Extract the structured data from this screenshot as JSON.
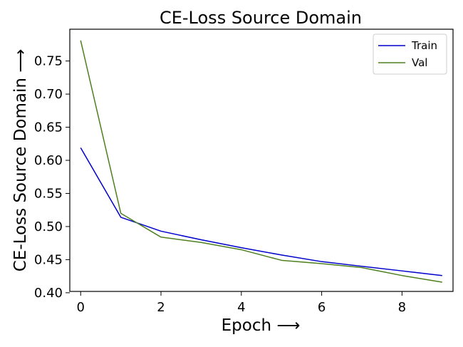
{
  "chart_data": {
    "type": "line",
    "title": "CE-Loss Source Domain",
    "xlabel": "Epoch ⟶",
    "ylabel": "CE-Loss Source Domain ⟶",
    "x": [
      0,
      1,
      2,
      3,
      4,
      5,
      6,
      7,
      8,
      9
    ],
    "xlim": [
      -0.27,
      9.27
    ],
    "ylim": [
      0.402,
      0.798
    ],
    "xticks": [
      0,
      2,
      4,
      6,
      8
    ],
    "xtick_labels": [
      "0",
      "2",
      "4",
      "6",
      "8"
    ],
    "yticks": [
      0.4,
      0.45,
      0.5,
      0.55,
      0.6,
      0.65,
      0.7,
      0.75
    ],
    "ytick_labels": [
      "0.40",
      "0.45",
      "0.50",
      "0.55",
      "0.60",
      "0.65",
      "0.70",
      "0.75"
    ],
    "grid": false,
    "legend_position": "top-right",
    "series": [
      {
        "name": "Train",
        "color": "#0000cc",
        "values": [
          0.619,
          0.514,
          0.493,
          0.48,
          0.468,
          0.457,
          0.447,
          0.44,
          0.433,
          0.426
        ]
      },
      {
        "name": "Val",
        "color": "#4d7f1f",
        "values": [
          0.781,
          0.52,
          0.484,
          0.476,
          0.465,
          0.449,
          0.444,
          0.438,
          0.426,
          0.416
        ]
      }
    ]
  }
}
